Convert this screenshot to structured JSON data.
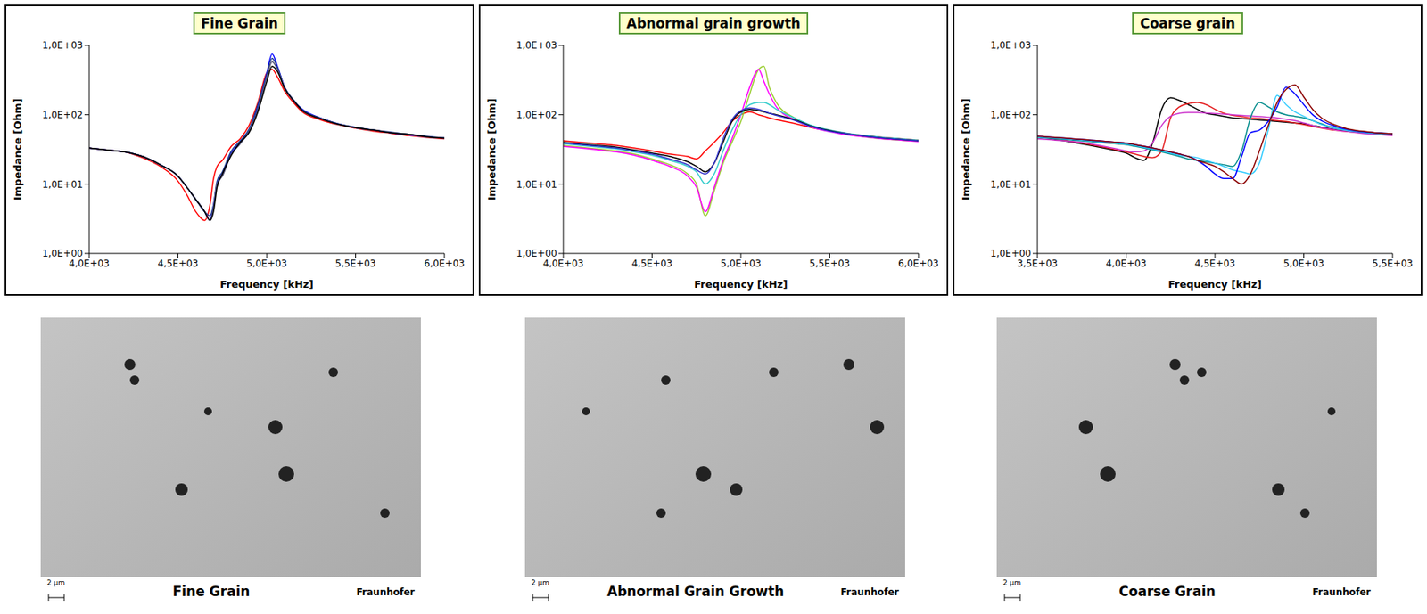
{
  "chart_data": [
    {
      "type": "line",
      "title": "Fine Grain",
      "x_label": "Frequency [kHz]",
      "y_label": "Impedance [Ohm]",
      "log": "y",
      "grid": false,
      "xlim": [
        4000,
        6000
      ],
      "xticks": [
        {
          "value": 4000,
          "label": "4,0E+03"
        },
        {
          "value": 4500,
          "label": "4,5E+03"
        },
        {
          "value": 5000,
          "label": "5,0E+03"
        },
        {
          "value": 5500,
          "label": "5,5E+03"
        },
        {
          "value": 6000,
          "label": "6,0E+03"
        }
      ],
      "ylim": [
        1,
        1000
      ],
      "yticks": [
        {
          "value": 1,
          "label": "1,0E+00"
        },
        {
          "value": 10,
          "label": "1,0E+01"
        },
        {
          "value": 100,
          "label": "1,0E+02"
        },
        {
          "value": 1000,
          "label": "1,0E+03"
        }
      ],
      "x": [
        4000,
        4100,
        4200,
        4300,
        4400,
        4500,
        4550,
        4600,
        4650,
        4680,
        4700,
        4720,
        4750,
        4800,
        4850,
        4900,
        4950,
        5000,
        5030,
        5060,
        5100,
        5150,
        5200,
        5300,
        5400,
        5500,
        5600,
        5700,
        5800,
        5900,
        6000
      ],
      "series": [
        {
          "color": "#ff0000",
          "values": [
            33,
            31,
            29,
            24,
            18,
            11,
            7,
            4,
            3,
            5,
            12,
            18,
            22,
            35,
            45,
            70,
            150,
            400,
            450,
            350,
            220,
            150,
            110,
            85,
            72,
            64,
            58,
            54,
            50,
            47,
            45
          ]
        },
        {
          "color": "#0000ff",
          "values": [
            33,
            31,
            29,
            25,
            19,
            13,
            9,
            6,
            4,
            3,
            5,
            10,
            14,
            28,
            40,
            60,
            130,
            400,
            750,
            500,
            250,
            160,
            120,
            90,
            74,
            65,
            60,
            55,
            51,
            48,
            46
          ]
        },
        {
          "color": "#1f3a93",
          "values": [
            33,
            31,
            29,
            25,
            19,
            13,
            9,
            6,
            4,
            3.5,
            5,
            11,
            15,
            30,
            42,
            62,
            140,
            380,
            650,
            480,
            250,
            165,
            118,
            90,
            74,
            66,
            60,
            56,
            52,
            49,
            46
          ]
        },
        {
          "color": "#555577",
          "values": [
            33,
            31,
            29,
            25,
            19,
            13,
            9,
            6,
            4,
            3,
            4.5,
            10,
            13,
            27,
            38,
            58,
            120,
            340,
            580,
            450,
            245,
            162,
            116,
            89,
            73,
            65,
            60,
            55,
            52,
            48,
            46
          ]
        },
        {
          "color": "#000000",
          "values": [
            33,
            31,
            29,
            25,
            19,
            13,
            9,
            6,
            4,
            3,
            4,
            9,
            14,
            26,
            40,
            55,
            110,
            300,
            500,
            420,
            240,
            160,
            115,
            88,
            73,
            65,
            60,
            55,
            52,
            48,
            46
          ]
        }
      ]
    },
    {
      "type": "line",
      "title": "Abnormal grain growth",
      "x_label": "Frequency [kHz]",
      "y_label": "Impedance [Ohm]",
      "log": "y",
      "grid": false,
      "xlim": [
        4000,
        6000
      ],
      "xticks": [
        {
          "value": 4000,
          "label": "4,0E+03"
        },
        {
          "value": 4500,
          "label": "4,5E+03"
        },
        {
          "value": 5000,
          "label": "5,0E+03"
        },
        {
          "value": 5500,
          "label": "5,5E+03"
        },
        {
          "value": 6000,
          "label": "6,0E+03"
        }
      ],
      "ylim": [
        1,
        1000
      ],
      "yticks": [
        {
          "value": 1,
          "label": "1,0E+00"
        },
        {
          "value": 10,
          "label": "1,0E+01"
        },
        {
          "value": 100,
          "label": "1,0E+02"
        },
        {
          "value": 1000,
          "label": "1,0E+03"
        }
      ],
      "x": [
        4000,
        4100,
        4200,
        4300,
        4400,
        4500,
        4600,
        4700,
        4750,
        4800,
        4850,
        4900,
        4950,
        5000,
        5050,
        5100,
        5130,
        5160,
        5200,
        5300,
        5400,
        5500,
        5600,
        5700,
        5800,
        5900,
        6000
      ],
      "series": [
        {
          "color": "#ff0000",
          "values": [
            42,
            40,
            38,
            36,
            33,
            30,
            27,
            25,
            23,
            30,
            40,
            55,
            80,
            100,
            110,
            100,
            95,
            90,
            85,
            75,
            65,
            58,
            53,
            50,
            47,
            45,
            43
          ]
        },
        {
          "color": "#9acd32",
          "values": [
            36,
            34,
            32,
            30,
            27,
            23,
            19,
            14,
            10,
            3.5,
            8,
            20,
            40,
            80,
            200,
            450,
            500,
            250,
            150,
            90,
            68,
            58,
            52,
            48,
            45,
            43,
            42
          ]
        },
        {
          "color": "#ff00ff",
          "values": [
            35,
            33,
            31,
            29,
            26,
            22,
            18,
            13,
            9,
            4,
            9,
            22,
            45,
            100,
            250,
            450,
            300,
            200,
            130,
            85,
            66,
            57,
            51,
            48,
            45,
            43,
            41
          ]
        },
        {
          "color": "#33cccc",
          "values": [
            38,
            36,
            34,
            32,
            29,
            26,
            22,
            18,
            15,
            10,
            14,
            30,
            60,
            100,
            140,
            150,
            150,
            140,
            120,
            90,
            70,
            60,
            54,
            50,
            47,
            45,
            43
          ]
        },
        {
          "color": "#000000",
          "values": [
            40,
            38,
            36,
            34,
            31,
            28,
            25,
            21,
            18,
            15,
            20,
            40,
            80,
            110,
            120,
            115,
            110,
            105,
            100,
            85,
            68,
            59,
            53,
            49,
            46,
            44,
            42
          ]
        },
        {
          "color": "#3333cc",
          "values": [
            39,
            37,
            35,
            33,
            30,
            27,
            23,
            19,
            16,
            14,
            20,
            45,
            85,
            115,
            125,
            120,
            112,
            105,
            98,
            83,
            67,
            58,
            53,
            49,
            46,
            44,
            42
          ]
        }
      ]
    },
    {
      "type": "line",
      "title": "Coarse grain",
      "x_label": "Frequency [kHz]",
      "y_label": "Impedance [Ohm]",
      "log": "y",
      "grid": false,
      "xlim": [
        3500,
        5500
      ],
      "xticks": [
        {
          "value": 3500,
          "label": "3,5E+03"
        },
        {
          "value": 4000,
          "label": "4,0E+03"
        },
        {
          "value": 4500,
          "label": "4,5E+03"
        },
        {
          "value": 5000,
          "label": "5,0E+03"
        },
        {
          "value": 5500,
          "label": "5,5E+03"
        }
      ],
      "ylim": [
        1,
        1000
      ],
      "yticks": [
        {
          "value": 1,
          "label": "1,0E+00"
        },
        {
          "value": 10,
          "label": "1,0E+01"
        },
        {
          "value": 100,
          "label": "1,0E+02"
        },
        {
          "value": 1000,
          "label": "1,0E+03"
        }
      ],
      "x": [
        3500,
        3550,
        3600,
        3650,
        3700,
        3750,
        3800,
        3850,
        3900,
        3950,
        4000,
        4050,
        4100,
        4150,
        4200,
        4250,
        4300,
        4350,
        4400,
        4450,
        4500,
        4550,
        4600,
        4650,
        4700,
        4750,
        4800,
        4850,
        4900,
        4950,
        5000,
        5050,
        5100,
        5150,
        5200,
        5250,
        5300,
        5350,
        5400,
        5450,
        5500
      ],
      "series": [
        {
          "color": "#000000",
          "values": [
            48,
            46,
            44,
            42,
            40,
            38,
            36,
            34,
            32,
            30,
            28,
            24,
            22,
            40,
            120,
            175,
            160,
            140,
            120,
            105,
            100,
            95,
            90,
            88,
            86,
            84,
            82,
            80,
            78,
            76,
            74,
            70,
            66,
            63,
            60,
            58,
            57,
            56,
            55,
            54,
            53
          ]
        },
        {
          "color": "#e41a1c",
          "values": [
            48,
            47,
            45,
            43,
            41,
            39,
            37,
            35,
            33,
            31,
            29,
            27,
            25,
            24,
            30,
            90,
            130,
            145,
            150,
            140,
            120,
            105,
            98,
            94,
            90,
            88,
            85,
            82,
            80,
            76,
            72,
            68,
            64,
            61,
            59,
            57,
            56,
            55,
            54,
            53,
            52
          ]
        },
        {
          "color": "#cc33cc",
          "values": [
            45,
            44,
            43,
            42,
            41,
            40,
            38,
            36,
            34,
            32,
            30,
            29,
            30,
            40,
            70,
            95,
            105,
            108,
            108,
            106,
            104,
            102,
            100,
            98,
            96,
            94,
            92,
            90,
            86,
            82,
            76,
            70,
            65,
            62,
            59,
            57,
            55,
            53,
            52,
            51,
            50
          ]
        },
        {
          "color": "#008b8b",
          "values": [
            47,
            46,
            45,
            44,
            43,
            42,
            41,
            40,
            39,
            38,
            37,
            35,
            33,
            31,
            29,
            27,
            25,
            23,
            22,
            21,
            20,
            19,
            18,
            30,
            90,
            150,
            130,
            110,
            100,
            95,
            90,
            82,
            74,
            67,
            62,
            59,
            57,
            55,
            54,
            53,
            52
          ]
        },
        {
          "color": "#33ccff",
          "values": [
            48,
            47,
            46,
            45,
            44,
            43,
            42,
            41,
            40,
            39,
            38,
            36,
            34,
            32,
            30,
            28,
            26,
            25,
            24,
            22,
            20,
            18,
            16,
            15,
            14,
            20,
            60,
            190,
            140,
            110,
            95,
            82,
            72,
            66,
            62,
            59,
            57,
            55,
            54,
            53,
            52
          ]
        },
        {
          "color": "#0000ff",
          "values": [
            49,
            48,
            47,
            46,
            45,
            44,
            43,
            42,
            41,
            40,
            39,
            37,
            35,
            33,
            31,
            29,
            27,
            25,
            22,
            18,
            14,
            12,
            12,
            25,
            55,
            60,
            80,
            130,
            250,
            200,
            140,
            100,
            82,
            72,
            65,
            61,
            58,
            56,
            55,
            54,
            53
          ]
        },
        {
          "color": "#8b0000",
          "values": [
            49,
            48,
            47,
            46,
            45,
            44,
            43,
            42,
            41,
            40,
            39,
            37,
            35,
            33,
            31,
            29,
            27,
            25,
            22,
            20,
            18,
            15,
            12,
            10,
            14,
            30,
            70,
            150,
            230,
            270,
            180,
            120,
            90,
            76,
            68,
            62,
            59,
            57,
            55,
            54,
            53
          ]
        }
      ]
    }
  ],
  "images": [
    {
      "caption": "Fine Grain",
      "scale_bar": "2 µm",
      "logo": "Fraunhofer"
    },
    {
      "caption": "Abnormal Grain Growth",
      "scale_bar": "2 µm",
      "logo": "Fraunhofer"
    },
    {
      "caption": "Coarse Grain",
      "scale_bar": "2 µm",
      "logo": "Fraunhofer"
    }
  ]
}
